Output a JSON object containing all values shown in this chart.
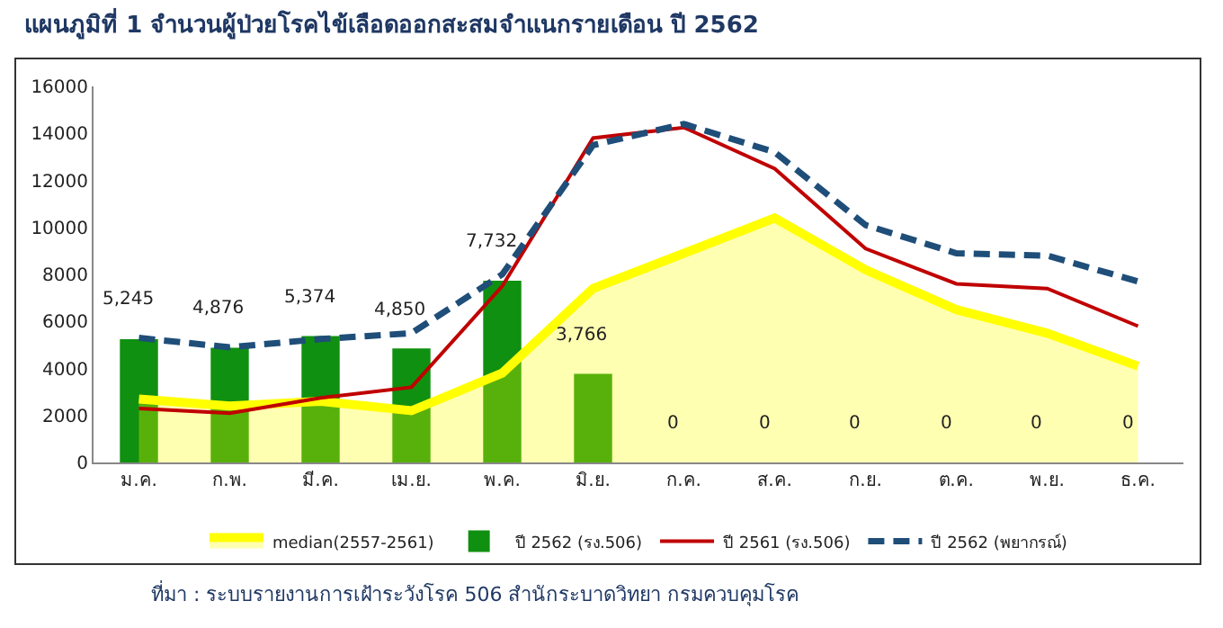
{
  "chart_data": {
    "type": "bar",
    "title": "แผนภูมิที่ 1 จำนวนผู้ป่วยโรคไข้เลือดออกสะสมจำแนกรายเดือน ปี 2562",
    "categories": [
      "ม.ค.",
      "ก.พ.",
      "มี.ค.",
      "เม.ย.",
      "พ.ค.",
      "มิ.ย.",
      "ก.ค.",
      "ส.ค.",
      "ก.ย.",
      "ต.ค.",
      "พ.ย.",
      "ธ.ค."
    ],
    "series": [
      {
        "name": "median(2557-2561)",
        "type": "area",
        "color": "#ffff00",
        "values": [
          2700,
          2400,
          2600,
          2200,
          3800,
          7400,
          8900,
          10400,
          8200,
          6500,
          5500,
          4100
        ]
      },
      {
        "name": "ปี 2562 (รง.506)",
        "color": "#109010",
        "values": [
          5245,
          4876,
          5374,
          4850,
          7732,
          3766,
          0,
          0,
          0,
          0,
          0,
          0
        ],
        "value_labels": [
          "5,245",
          "4,876",
          "5,374",
          "4,850",
          "7,732",
          "3,766",
          "0",
          "0",
          "0",
          "0",
          "0",
          "0"
        ]
      },
      {
        "name": "ปี 2561 (รง.506)",
        "type": "line",
        "color": "#c00000",
        "line_style": "solid",
        "values": [
          2300,
          2100,
          2750,
          3200,
          7500,
          13800,
          14250,
          12500,
          9100,
          7600,
          7400,
          5800
        ]
      },
      {
        "name": "ปี 2562 (พยากรณ์)",
        "type": "line",
        "color": "#1f4e79",
        "line_style": "dashed",
        "values": [
          5300,
          4900,
          5250,
          5500,
          8000,
          13500,
          14400,
          13200,
          10100,
          8900,
          8800,
          7700
        ]
      }
    ],
    "ylim": [
      0,
      16000
    ],
    "yticks": [
      0,
      2000,
      4000,
      6000,
      8000,
      10000,
      12000,
      14000,
      16000
    ],
    "grid": false,
    "legend": "bottom",
    "marker": "none",
    "annotations": [
      "ที่มา : ระบบรายงานการเฝ้าระวังโรค 506 สำนักระบาดวิทยา กรมควบคุมโรค"
    ]
  }
}
